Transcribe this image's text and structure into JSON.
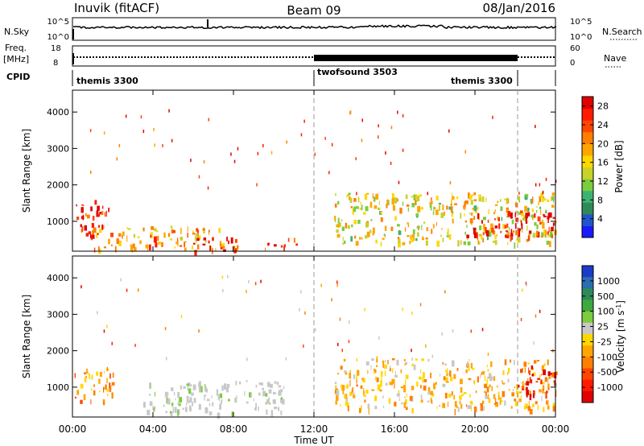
{
  "header": {
    "station": "Inuvik (fitACF)",
    "beam": "Beam 09",
    "date": "08/Jan/2016"
  },
  "strips": {
    "nsky_label": "N.Sky",
    "nsky_ticks": [
      "10^5",
      "10^0"
    ],
    "nsearch_label": "N.Search",
    "nsearch_ticks": [
      "10^5",
      "10^0"
    ],
    "freq_label": "Freq.",
    "freq_unit": "[MHz]",
    "freq_ticks": [
      "18",
      "8"
    ],
    "nave_label": "Nave",
    "nave_ticks": [
      "60",
      "0"
    ],
    "cpid_label": "CPID",
    "cpid_segments": [
      {
        "name": "themis 3300",
        "start_h": 0,
        "end_h": 12
      },
      {
        "name": "twofsound 3503",
        "start_h": 12,
        "end_h": 22
      },
      {
        "name": "themis 3300",
        "start_h": 22,
        "end_h": 24
      }
    ]
  },
  "chart_data": [
    {
      "type": "heatmap",
      "title": "Power",
      "xlabel": "Time UT",
      "ylabel": "Slant Range [km]",
      "x_ticks": [
        "00:00",
        "04:00",
        "08:00",
        "12:00",
        "16:00",
        "20:00",
        "00:00"
      ],
      "xlim_hours": [
        0,
        24
      ],
      "y_ticks": [
        "1000",
        "2000",
        "3000",
        "4000"
      ],
      "ylim_km": [
        180,
        4600
      ],
      "colorbar": {
        "label": "Power [dB]",
        "ticks": [
          "4",
          "8",
          "12",
          "16",
          "20",
          "24",
          "28"
        ],
        "range": [
          0,
          30
        ],
        "colors": [
          "#1a1aff",
          "#2255cc",
          "#2e8b57",
          "#3cb371",
          "#7ccd3c",
          "#c8d22a",
          "#ffd700",
          "#ffa500",
          "#ff7f00",
          "#ff4500",
          "#ff1a00",
          "#e00000"
        ]
      },
      "features": [
        {
          "desc": "strong echoes",
          "start_h": 0.0,
          "end_h": 1.8,
          "range_km": [
            600,
            1600
          ],
          "power_db": 28
        },
        {
          "desc": "echoes",
          "start_h": 1.0,
          "end_h": 7.5,
          "range_km": [
            250,
            900
          ],
          "power_db": 20
        },
        {
          "desc": "strong echoes",
          "start_h": 6.0,
          "end_h": 8.2,
          "range_km": [
            200,
            600
          ],
          "power_db": 28
        },
        {
          "desc": "strong echoes",
          "start_h": 9.5,
          "end_h": 11.2,
          "range_km": [
            250,
            550
          ],
          "power_db": 28
        },
        {
          "desc": "echoes",
          "start_h": 13.0,
          "end_h": 24.0,
          "range_km": [
            400,
            1800
          ],
          "power_db": 16
        },
        {
          "desc": "strong echoes",
          "start_h": 19.5,
          "end_h": 24.0,
          "range_km": [
            600,
            1300
          ],
          "power_db": 28
        }
      ]
    },
    {
      "type": "heatmap",
      "title": "Velocity",
      "xlabel": "Time UT",
      "ylabel": "Slant Range [km]",
      "x_ticks": [
        "00:00",
        "04:00",
        "08:00",
        "12:00",
        "16:00",
        "20:00",
        "00:00"
      ],
      "xlim_hours": [
        0,
        24
      ],
      "y_ticks": [
        "1000",
        "2000",
        "3000",
        "4000"
      ],
      "ylim_km": [
        180,
        4600
      ],
      "colorbar": {
        "label": "Velocity [m s^-1]",
        "ticks": [
          "1000",
          "500",
          "100",
          "25",
          "-25",
          "-100",
          "-500",
          "-1000"
        ],
        "colors": [
          "#1a3cc8",
          "#2a6fb0",
          "#2e8b57",
          "#3caa3c",
          "#7ccd3c",
          "#c8c8c8",
          "#ffd700",
          "#ffa500",
          "#ff7f00",
          "#ff4500",
          "#ff1a00",
          "#e00000"
        ]
      },
      "features": [
        {
          "desc": "negative velocity",
          "start_h": 0.0,
          "end_h": 2.0,
          "range_km": [
            600,
            1600
          ],
          "velocity": -300
        },
        {
          "desc": "ground scatter",
          "start_h": 3.5,
          "end_h": 10.5,
          "range_km": [
            300,
            1200
          ],
          "velocity": 0
        },
        {
          "desc": "mixed velocity",
          "start_h": 13.0,
          "end_h": 24.0,
          "range_km": [
            400,
            1800
          ],
          "velocity": -200
        },
        {
          "desc": "strong negative velocity",
          "start_h": 22.0,
          "end_h": 24.0,
          "range_km": [
            800,
            1600
          ],
          "velocity": -800
        }
      ]
    }
  ]
}
